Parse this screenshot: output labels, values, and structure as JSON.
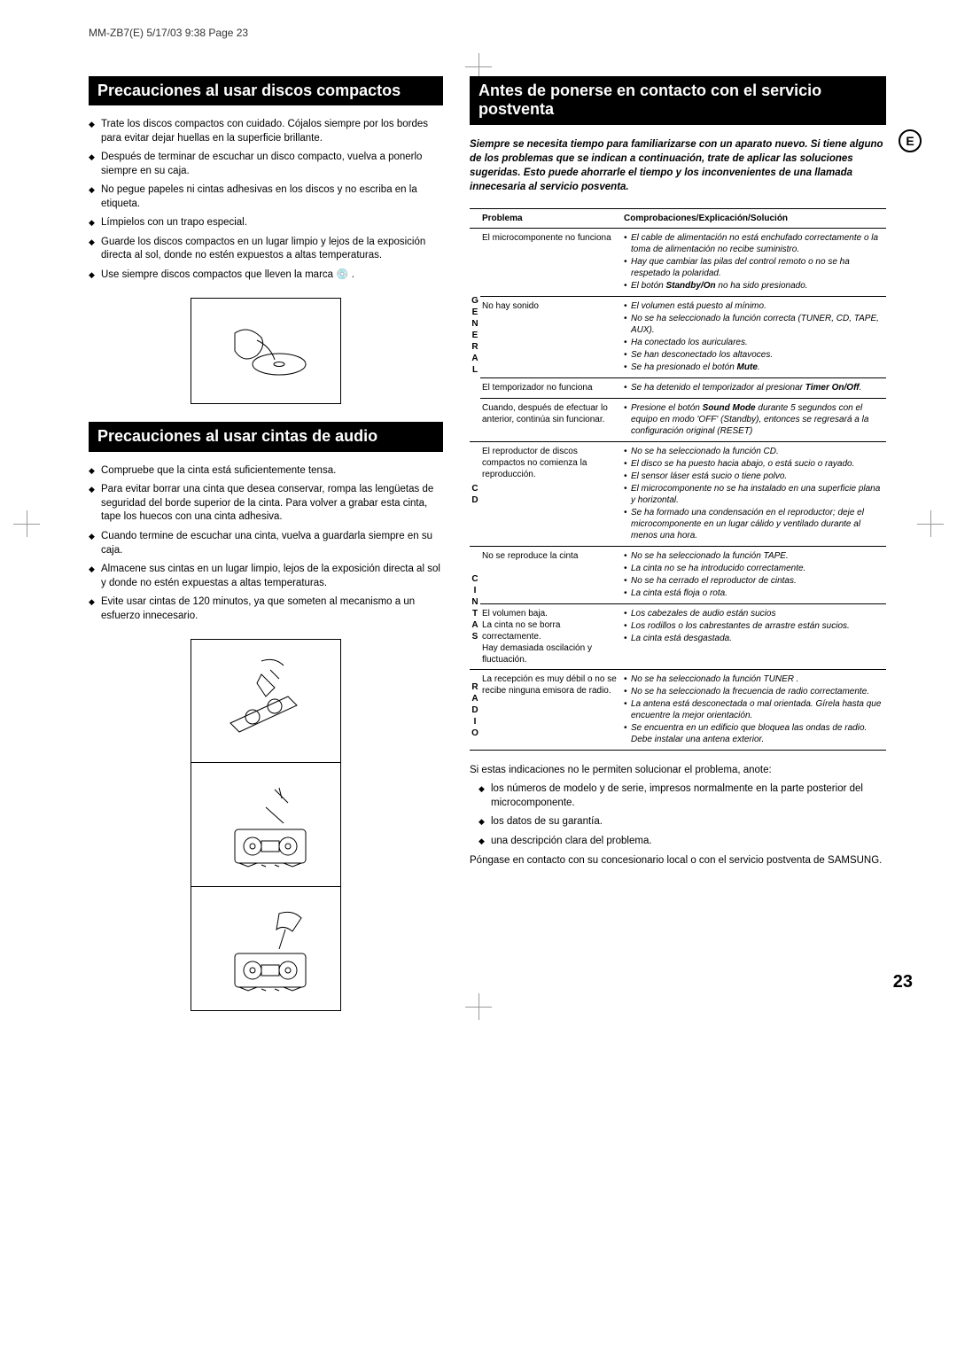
{
  "header": "MM-ZB7(E)  5/17/03 9:38  Page 23",
  "lang_badge": "E",
  "page_number": "23",
  "left": {
    "h1": "Precauciones al usar discos compactos",
    "b1": [
      "Trate los discos compactos con cuidado. Cójalos siempre por los bordes para evitar dejar huellas en la superficie brillante.",
      "Después de terminar de escuchar un disco compacto, vuelva a ponerlo siempre en su caja.",
      "No pegue papeles ni cintas adhesivas en los discos y no escriba en la etiqueta.",
      "Límpielos con un trapo especial.",
      "Guarde los discos compactos en un lugar limpio y lejos de la exposición directa al sol, donde no estén expuestos a altas temperaturas.",
      "Use siempre discos compactos que lleven la marca 💿 ."
    ],
    "h2": "Precauciones al usar cintas de audio",
    "b2": [
      "Compruebe que la cinta está suficientemente tensa.",
      "Para evitar borrar una cinta que desea conservar, rompa las lengüetas de seguridad del borde superior de la cinta. Para volver a grabar esta cinta, tape los huecos con una cinta adhesiva.",
      "Cuando termine de escuchar una cinta, vuelva a guardarla siempre en su caja.",
      "Almacene sus cintas en un lugar limpio, lejos de la exposición directa al sol y donde no estén expuestas a altas temperaturas.",
      "Evite usar cintas de 120 minutos, ya que someten al mecanismo a un esfuerzo innecesario."
    ]
  },
  "right": {
    "h1": "Antes de ponerse en contacto con el servicio postventa",
    "intro": "Siempre se necesita tiempo para familiarizarse con un aparato nuevo. Si tiene alguno de los problemas que se indican a continuación, trate de aplicar las soluciones sugeridas. Esto puede ahorrarle el tiempo y los inconvenientes de una llamada innecesaria al servicio posventa.",
    "th_problem": "Problema",
    "th_solution": "Comprobaciones/Explicación/Solución",
    "groups": [
      {
        "cat": "GENERAL",
        "rows": [
          {
            "p": "El microcomponente no funciona",
            "s": [
              "El cable de alimentación no está enchufado correctamente o la toma de alimentación no recibe suministro.",
              "Hay que cambiar las pilas del control remoto o no se ha respetado la polaridad.",
              "El botón <b>Standby/On</b> no ha sido presionado."
            ]
          },
          {
            "p": "No hay sonido",
            "s": [
              "El volumen está puesto al mínimo.",
              "No se ha seleccionado la función correcta (TUNER, CD, TAPE, AUX).",
              "Ha conectado los auriculares.",
              "Se han desconectado los altavoces.",
              "Se ha presionado el botón <b>Mute</b>."
            ]
          },
          {
            "p": "El temporizador no funciona",
            "s": [
              "Se ha detenido el temporizador al presionar <b>Timer On/Off</b>."
            ]
          },
          {
            "p": "Cuando, después de efectuar lo anterior, continúa sin funcionar.",
            "s": [
              "Presione el botón <b>Sound Mode</b> durante 5 segundos con el equipo en modo 'OFF' (Standby), entonces se regresará a la configuración original (RESET)"
            ]
          }
        ]
      },
      {
        "cat": "CD",
        "rows": [
          {
            "p": "El reproductor de discos compactos no comienza la reproducción.",
            "s": [
              "No se ha seleccionado la función CD.",
              "El disco se ha puesto hacia abajo, o está sucio o rayado.",
              "El sensor láser está sucio o tiene polvo.",
              "El microcomponente no se ha instalado en una superficie plana y horizontal.",
              "Se ha formado una condensación en el reproductor; deje el microcomponente en un lugar cálido y ventilado durante al menos una hora."
            ]
          }
        ]
      },
      {
        "cat": "CINTAS",
        "rows": [
          {
            "p": "No se reproduce la cinta",
            "s": [
              "No se ha seleccionado la función TAPE.",
              "La cinta no se ha introducido correctamente.",
              "No se ha cerrado el reproductor de cintas.",
              "La cinta está floja o rota."
            ]
          },
          {
            "p": "El volumen baja.\nLa cinta no se borra correctamente.\nHay demasiada oscilación y fluctuación.",
            "s": [
              "Los cabezales de audio están sucios",
              "Los rodillos o los cabrestantes de arrastre están sucios.",
              "La cinta está desgastada."
            ]
          }
        ]
      },
      {
        "cat": "RADIO",
        "rows": [
          {
            "p": "La recepción es muy débil o no se recibe ninguna emisora de radio.",
            "s": [
              "No se ha seleccionado la función TUNER .",
              "No se ha seleccionado la frecuencia de radio correctamente.",
              "La antena está desconectada o mal orientada. Gírela hasta que encuentre la mejor orientación.",
              "Se encuentra en un edificio que bloquea las ondas de radio. Debe instalar una antena exterior."
            ]
          }
        ]
      }
    ],
    "after_intro": "Si estas indicaciones no le permiten solucionar el problema, anote:",
    "after_bullets": [
      "los números de modelo y de serie, impresos normalmente en la parte posterior del microcomponente.",
      "los datos de su garantía.",
      "una descripción clara del problema."
    ],
    "after_outro": "Póngase en contacto con su concesionario local o con el servicio postventa de SAMSUNG."
  }
}
